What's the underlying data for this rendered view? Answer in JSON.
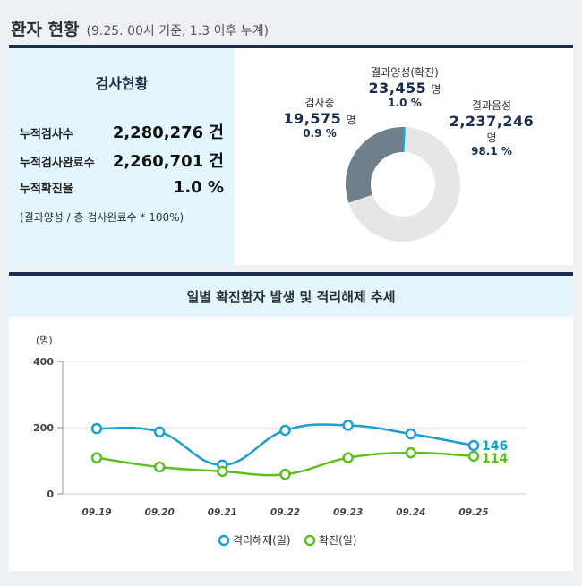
{
  "header": {
    "title": "환자 현황",
    "subtitle": "(9.25. 00시 기준, 1.3 이후 누계)"
  },
  "stats": {
    "title": "검사현황",
    "rows": [
      {
        "label": "누적검사수",
        "value": "2,280,276 건"
      },
      {
        "label": "누적검사완료수",
        "value": "2,260,701 건"
      },
      {
        "label": "누적확진율",
        "value": "1.0 %"
      }
    ],
    "note": "(결과양성 / 총 검사완료수 * 100%)"
  },
  "donut": {
    "colors": {
      "positive": "#1aa6dc",
      "negative": "#e6e6e6",
      "testing": "#6f808b"
    },
    "testing": {
      "name": "검사중",
      "value": "19,575",
      "unit": "명",
      "pct": "0.9 %"
    },
    "positive": {
      "name": "결과양성(확진)",
      "value": "23,455",
      "unit": "명",
      "pct": "1.0 %"
    },
    "negative": {
      "name": "결과음성",
      "value": "2,237,246",
      "unit": "명",
      "pct": "98.1 %"
    }
  },
  "chart_data": {
    "type": "line",
    "title": "일별 확진환자 발생 및 격리해제 추세",
    "ylabel": "(명)",
    "categories": [
      "09.19",
      "09.20",
      "09.21",
      "09.22",
      "09.23",
      "09.24",
      "09.25"
    ],
    "yticks": [
      0,
      200,
      400
    ],
    "ylim": [
      0,
      400
    ],
    "legend": "bottom",
    "series": [
      {
        "name": "격리해제(일)",
        "color": "#1a9fd0",
        "values": [
          197,
          187,
          87,
          192,
          207,
          181,
          146
        ],
        "end_label": "146"
      },
      {
        "name": "확진(일)",
        "color": "#5cbf1e",
        "values": [
          109,
          81,
          68,
          59,
          109,
          124,
          114
        ],
        "end_label": "114"
      }
    ]
  }
}
